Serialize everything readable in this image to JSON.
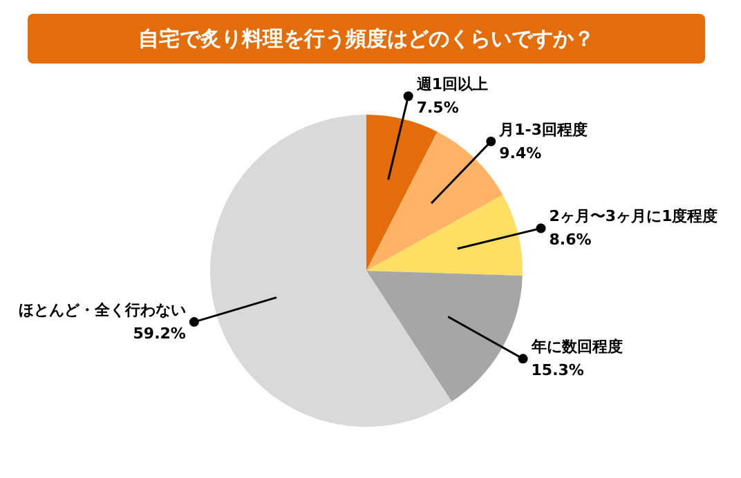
{
  "chart_data": {
    "type": "pie",
    "title": "自宅で炙り料理を行う頻度はどのくらいですか？",
    "categories": [
      "週1回以上",
      "月1-3回程度",
      "2ヶ月〜3ヶ月に1度程度",
      "年に数回程度",
      "ほとんど・全く行わない"
    ],
    "values": [
      7.5,
      9.4,
      8.6,
      15.3,
      59.2
    ],
    "value_labels": [
      "7.5%",
      "9.4%",
      "8.6%",
      "15.3%",
      "59.2%"
    ],
    "colors": [
      "#e46c0a",
      "#ffb366",
      "#ffdf63",
      "#a6a6a6",
      "#d9d9d9"
    ]
  }
}
